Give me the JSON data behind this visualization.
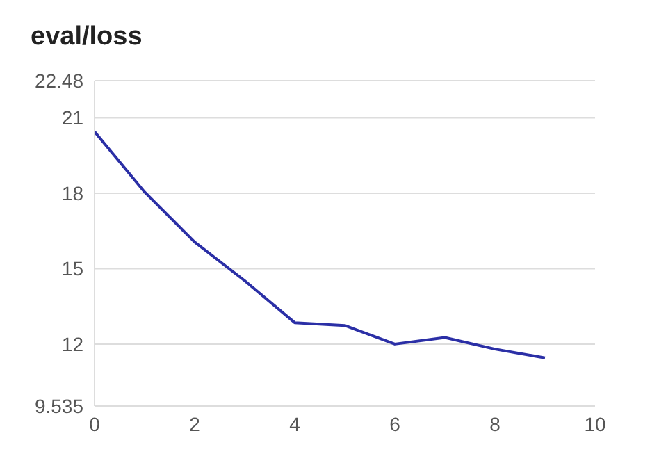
{
  "chart_data": {
    "type": "line",
    "title": "eval/loss",
    "x": [
      0,
      1,
      2,
      3,
      4,
      5,
      6,
      7,
      8,
      9
    ],
    "series": [
      {
        "color": "#2b2fa6",
        "values": [
          20.45,
          18.05,
          16.06,
          14.52,
          12.85,
          12.74,
          12.0,
          12.26,
          11.8,
          11.45
        ]
      }
    ],
    "xlim": [
      0,
      10
    ],
    "xticks": [
      0,
      2,
      4,
      6,
      8,
      10
    ],
    "ylim": [
      9.535,
      22.48
    ],
    "yticks": [
      9.535,
      12,
      15,
      18,
      21,
      22.48
    ],
    "grid": "y",
    "marker": "none",
    "line_style": "solid"
  }
}
